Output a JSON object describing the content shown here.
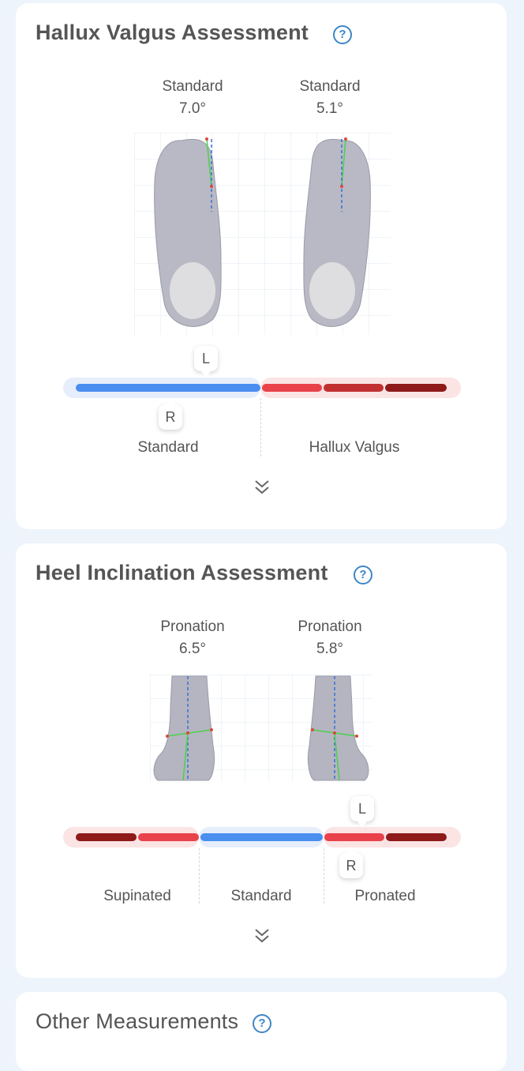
{
  "hallux": {
    "title": "Hallux Valgus Assessment",
    "left": {
      "label": "Standard",
      "value": "7.0°"
    },
    "right": {
      "label": "Standard",
      "value": "5.1°"
    },
    "marker_top": "L",
    "marker_bottom": "R",
    "zones": [
      "Standard",
      "Hallux Valgus"
    ],
    "marker_top_position": 0.36,
    "marker_bottom_position": 0.27
  },
  "heel": {
    "title": "Heel Inclination Assessment",
    "left": {
      "label": "Pronation",
      "value": "6.5°"
    },
    "right": {
      "label": "Pronation",
      "value": "5.8°"
    },
    "marker_top": "L",
    "marker_bottom": "R",
    "zones": [
      "Supinated",
      "Standard",
      "Pronated"
    ],
    "marker_top_position": 0.77,
    "marker_bottom_position": 0.73
  },
  "other": {
    "title": "Other Measurements"
  },
  "icons": {
    "help": "help-icon",
    "expand": "chevron-double-down-icon"
  },
  "colors": {
    "background": "#eef4fc",
    "standard_blue": "#4a8ef0",
    "light_red": "#e9424a",
    "mid_red": "#c13131",
    "dark_red": "#8e1a1a",
    "accent_help": "#3d86c6"
  }
}
